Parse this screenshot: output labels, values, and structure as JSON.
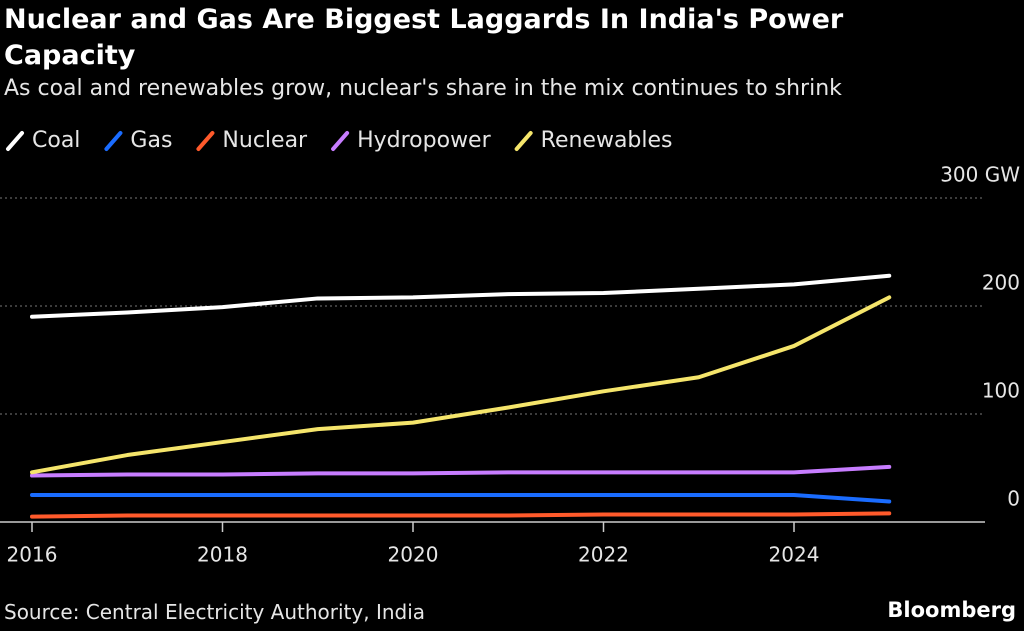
{
  "chart_data": {
    "type": "line",
    "title": "Nuclear and Gas Are Biggest Laggards In India's Power Capacity",
    "subtitle": "As coal and renewables grow, nuclear's share in the mix continues to shrink",
    "source": "Source: Central Electricity Authority, India",
    "brand": "Bloomberg",
    "x": [
      2016,
      2017,
      2018,
      2019,
      2020,
      2021,
      2022,
      2023,
      2024,
      2025
    ],
    "series": [
      {
        "name": "Coal",
        "color": "#ffffff",
        "values": [
          190,
          194,
          199,
          207,
          208,
          211,
          212,
          216,
          220,
          228
        ]
      },
      {
        "name": "Gas",
        "color": "#1a6cff",
        "values": [
          25,
          25,
          25,
          25,
          25,
          25,
          25,
          25,
          25,
          19
        ]
      },
      {
        "name": "Nuclear",
        "color": "#ff5a2b",
        "values": [
          5,
          6,
          6,
          6,
          6,
          6,
          7,
          7,
          7,
          8
        ]
      },
      {
        "name": "Hydropower",
        "color": "#c77dff",
        "values": [
          43,
          44,
          44,
          45,
          45,
          46,
          46,
          46,
          46,
          51
        ]
      },
      {
        "name": "Renewables",
        "color": "#f5e56b",
        "values": [
          46,
          62,
          74,
          86,
          92,
          106,
          121,
          134,
          163,
          208
        ]
      }
    ],
    "xlim": [
      2016,
      2026
    ],
    "xticks": [
      2016,
      2018,
      2020,
      2022,
      2024
    ],
    "ylim": [
      0,
      300
    ],
    "yticks": [
      0,
      100,
      200,
      {
        "value": 300,
        "label": "300 GW"
      }
    ],
    "grid": true
  }
}
